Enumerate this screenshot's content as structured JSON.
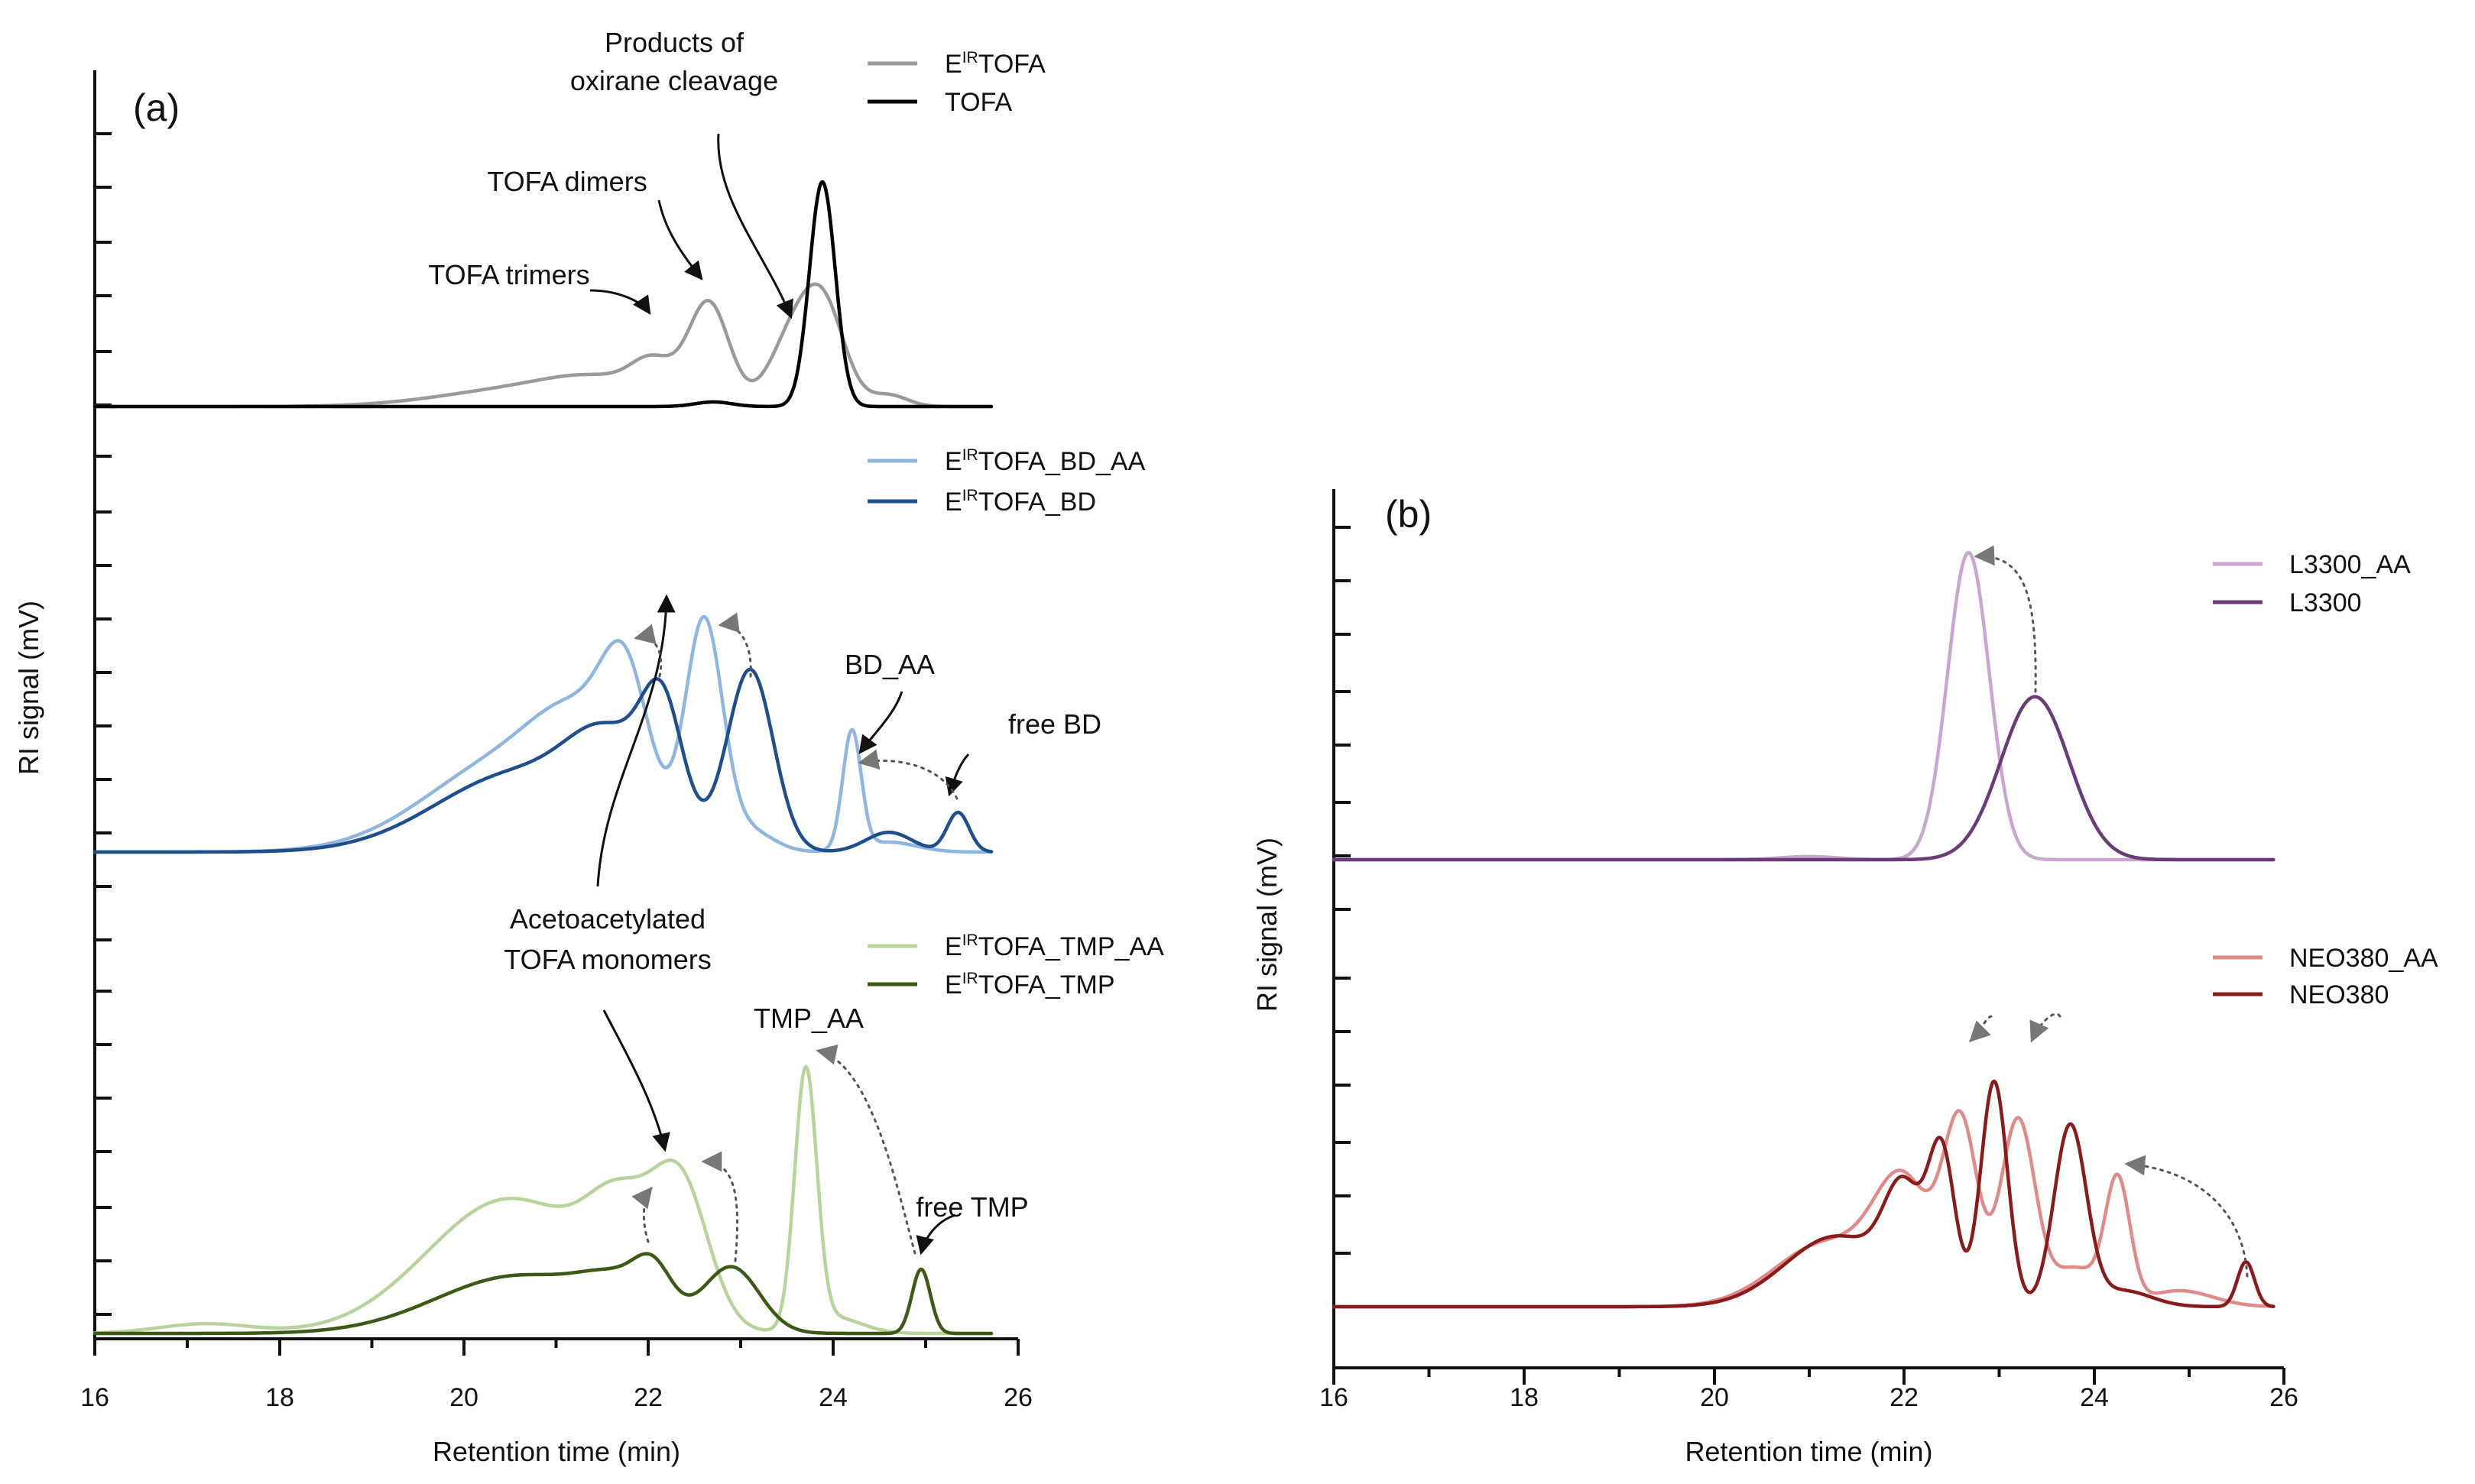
{
  "chart_data": [
    {
      "panel": "(a)",
      "type": "line",
      "xlabel": "Retention time (min)",
      "ylabel": "RI signal (mV)",
      "xlim": [
        16,
        26
      ],
      "xticks": [
        "16",
        "18",
        "20",
        "22",
        "24",
        "26"
      ],
      "groups": [
        {
          "id": "top",
          "series": [
            {
              "name": "E^IR TOFA",
              "base": "E",
              "sup": "IR",
              "rest": "TOFA",
              "color": "#9a9a9a",
              "peaks": [
                [
                  20.7,
                  0.08,
                  0.9
                ],
                [
                  21.5,
                  0.08,
                  0.55
                ],
                [
                  22.05,
                  0.14,
                  0.23
                ],
                [
                  22.65,
                  0.44,
                  0.22
                ],
                [
                  23.55,
                  0.28,
                  0.25
                ],
                [
                  23.9,
                  0.4,
                  0.23
                ],
                [
                  24.6,
                  0.05,
                  0.2
                ]
              ]
            },
            {
              "name": "TOFA",
              "rest": "TOFA",
              "color": "#000000",
              "peaks": [
                [
                  23.88,
                  0.98,
                  0.14
                ],
                [
                  22.7,
                  0.02,
                  0.2
                ]
              ]
            }
          ]
        },
        {
          "id": "mid",
          "series": [
            {
              "name": "E^IR TOFA_BD_AA",
              "base": "E",
              "sup": "IR",
              "rest": "TOFA_BD_AA",
              "color": "#8fb6e0",
              "peaks": [
                [
                  20.5,
                  0.28,
                  0.9
                ],
                [
                  21.3,
                  0.25,
                  0.5
                ],
                [
                  21.75,
                  0.35,
                  0.25
                ],
                [
                  22.6,
                  0.68,
                  0.2
                ],
                [
                  23.1,
                  0.06,
                  0.25
                ],
                [
                  24.2,
                  0.36,
                  0.1
                ],
                [
                  24.6,
                  0.03,
                  0.3
                ]
              ]
            },
            {
              "name": "E^IR TOFA_BD",
              "base": "E",
              "sup": "IR",
              "rest": "TOFA_BD",
              "color": "#1f4e8c",
              "peaks": [
                [
                  20.6,
                  0.24,
                  0.9
                ],
                [
                  21.6,
                  0.25,
                  0.45
                ],
                [
                  22.15,
                  0.34,
                  0.22
                ],
                [
                  23.1,
                  0.55,
                  0.25
                ],
                [
                  24.6,
                  0.06,
                  0.25
                ],
                [
                  25.35,
                  0.12,
                  0.12
                ]
              ]
            }
          ]
        },
        {
          "id": "bot",
          "series": [
            {
              "name": "E^IR TOFA_TMP_AA",
              "base": "E",
              "sup": "IR",
              "rest": "TOFA_TMP_AA",
              "color": "#b7d49c",
              "peaks": [
                [
                  17.2,
                  0.03,
                  0.5
                ],
                [
                  20.5,
                  0.42,
                  0.9
                ],
                [
                  21.7,
                  0.27,
                  0.35
                ],
                [
                  22.35,
                  0.42,
                  0.3
                ],
                [
                  23.7,
                  0.8,
                  0.12
                ],
                [
                  24.0,
                  0.05,
                  0.3
                ]
              ]
            },
            {
              "name": "E^IR TOFA_TMP",
              "base": "E",
              "sup": "IR",
              "rest": "TOFA_TMP",
              "color": "#3c5a16",
              "peaks": [
                [
                  20.6,
                  0.18,
                  0.9
                ],
                [
                  21.7,
                  0.1,
                  0.4
                ],
                [
                  22.05,
                  0.12,
                  0.2
                ],
                [
                  22.9,
                  0.2,
                  0.3
                ],
                [
                  24.95,
                  0.2,
                  0.1
                ]
              ]
            }
          ]
        }
      ],
      "annotations": [
        {
          "text": "(a)"
        },
        {
          "text": "Products of"
        },
        {
          "text": "oxirane cleavage"
        },
        {
          "text": "TOFA dimers"
        },
        {
          "text": "TOFA trimers"
        },
        {
          "text": "BD_AA"
        },
        {
          "text": "free BD"
        },
        {
          "text": "Acetoacetylated"
        },
        {
          "text": "TOFA monomers"
        },
        {
          "text": "TMP_AA"
        },
        {
          "text": "free TMP"
        }
      ]
    },
    {
      "panel": "(b)",
      "type": "line",
      "xlabel": "Retention time (min)",
      "ylabel": "RI signal (mV)",
      "xlim": [
        16,
        26
      ],
      "xticks": [
        "16",
        "18",
        "20",
        "22",
        "24",
        "26"
      ],
      "groups": [
        {
          "id": "top",
          "series": [
            {
              "name": "L3300_AA",
              "rest": "L3300_AA",
              "color": "#c9a6cf",
              "peaks": [
                [
                  22.68,
                  0.98,
                  0.22
                ],
                [
                  21.0,
                  0.01,
                  0.3
                ]
              ]
            },
            {
              "name": "L3300",
              "rest": "L3300",
              "color": "#6b3a78",
              "peaks": [
                [
                  23.38,
                  0.52,
                  0.36
                ]
              ]
            }
          ]
        },
        {
          "id": "bot",
          "series": [
            {
              "name": "NEO380_AA",
              "rest": "NEO380_AA",
              "color": "#e08a8a",
              "peaks": [
                [
                  21.2,
                  0.2,
                  0.55
                ],
                [
                  22.0,
                  0.35,
                  0.3
                ],
                [
                  22.6,
                  0.55,
                  0.18
                ],
                [
                  23.2,
                  0.58,
                  0.18
                ],
                [
                  23.8,
                  0.12,
                  0.25
                ],
                [
                  24.25,
                  0.38,
                  0.13
                ],
                [
                  24.9,
                  0.05,
                  0.35
                ]
              ]
            },
            {
              "name": "NEO380",
              "rest": "NEO380",
              "color": "#8b1a1a",
              "peaks": [
                [
                  21.3,
                  0.22,
                  0.55
                ],
                [
                  22.0,
                  0.3,
                  0.2
                ],
                [
                  22.4,
                  0.45,
                  0.14
                ],
                [
                  22.95,
                  0.7,
                  0.14
                ],
                [
                  23.75,
                  0.56,
                  0.17
                ],
                [
                  24.3,
                  0.05,
                  0.3
                ],
                [
                  25.6,
                  0.14,
                  0.09
                ]
              ]
            }
          ]
        }
      ],
      "annotations": [
        {
          "text": "(b)"
        }
      ]
    }
  ]
}
